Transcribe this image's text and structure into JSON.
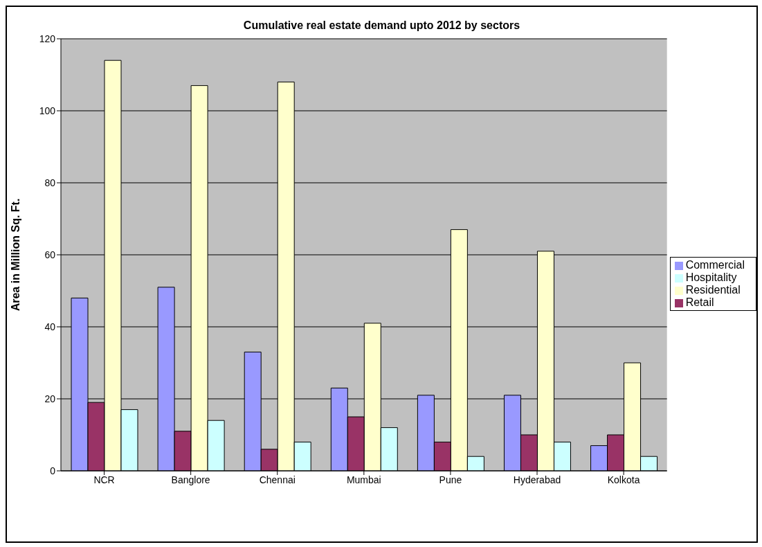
{
  "chart_data": {
    "type": "bar",
    "title": "Cumulative real estate demand upto 2012 by sectors",
    "ylabel": "Area in Million Sq. Ft.",
    "categories": [
      "NCR",
      "Banglore",
      "Chennai",
      "Mumbai",
      "Pune",
      "Hyderabad",
      "Kolkota"
    ],
    "series": [
      {
        "name": "Commercial",
        "color": "#9999ff",
        "values": [
          48,
          51,
          33,
          23,
          21,
          21,
          7
        ]
      },
      {
        "name": "Retail",
        "color": "#993366",
        "values": [
          19,
          11,
          6,
          15,
          8,
          10,
          10
        ]
      },
      {
        "name": "Residential",
        "color": "#ffffcc",
        "values": [
          114,
          107,
          108,
          41,
          67,
          61,
          30
        ]
      },
      {
        "name": "Hospitality",
        "color": "#ccffff",
        "values": [
          17,
          14,
          8,
          12,
          4,
          8,
          4
        ]
      }
    ],
    "ylim": [
      0,
      120
    ],
    "yticks": [
      0,
      20,
      40,
      60,
      80,
      100,
      120
    ],
    "grid": "y",
    "legend": "right"
  }
}
